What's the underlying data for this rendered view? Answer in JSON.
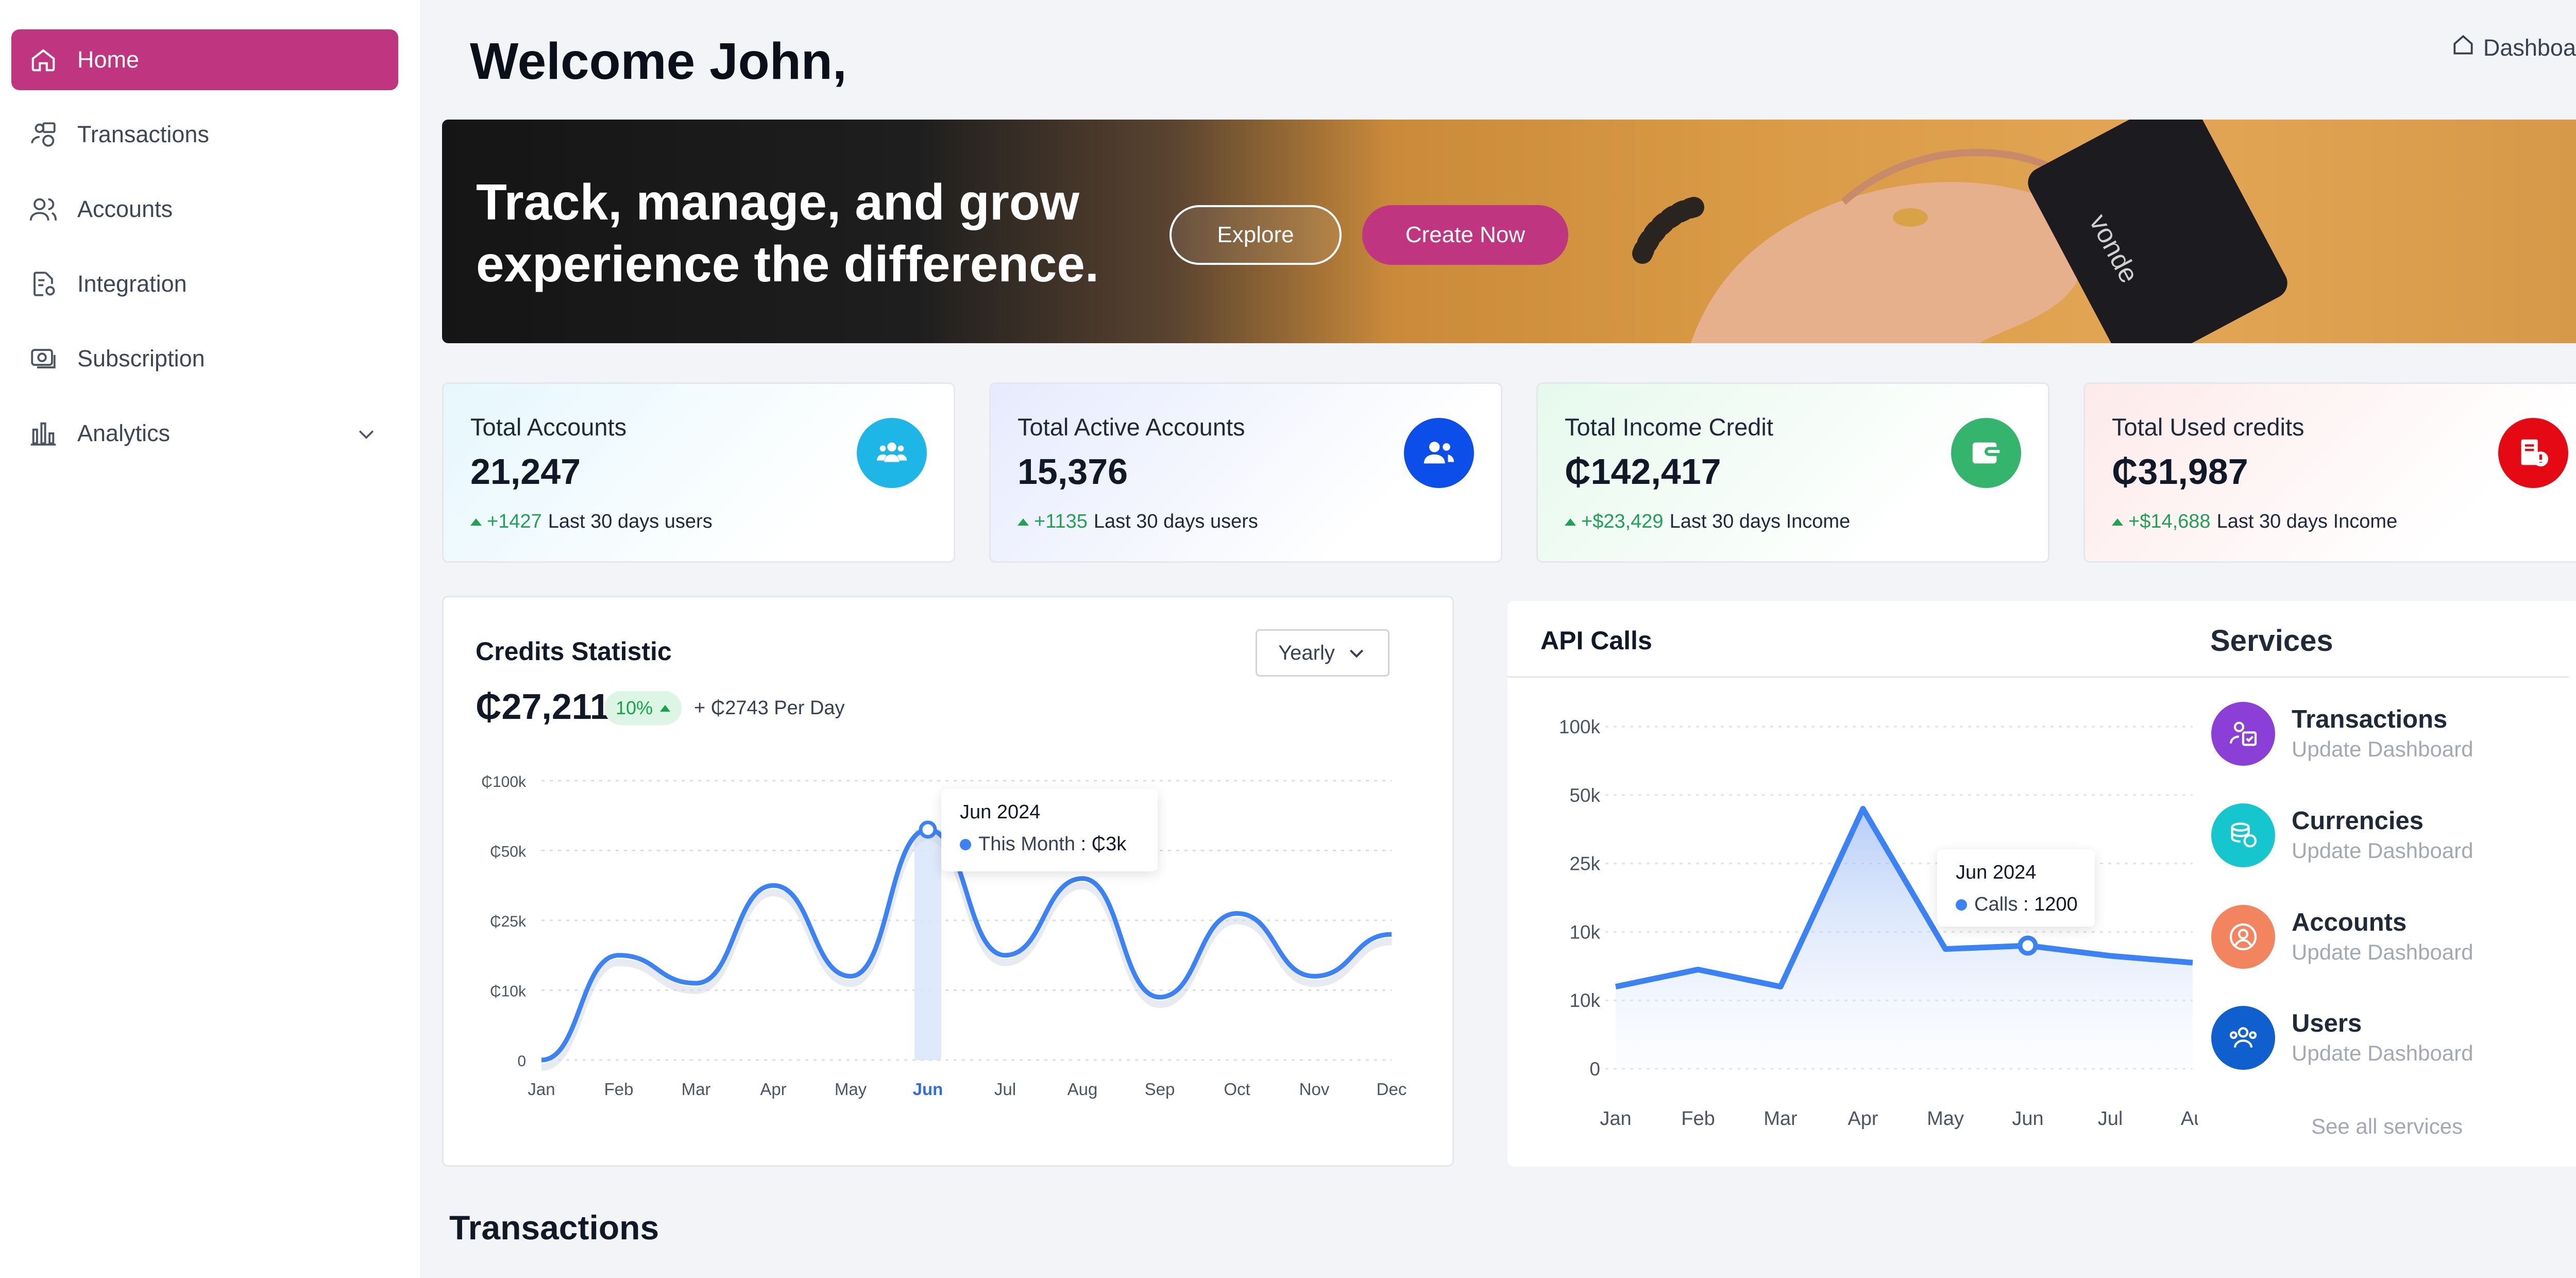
{
  "sidebar": {
    "items": [
      {
        "label": "Home",
        "icon": "home-icon",
        "active": true
      },
      {
        "label": "Transactions",
        "icon": "transactions-icon"
      },
      {
        "label": "Accounts",
        "icon": "users-icon"
      },
      {
        "label": "Integration",
        "icon": "document-settings-icon"
      },
      {
        "label": "Subscription",
        "icon": "subscription-icon"
      },
      {
        "label": "Analytics",
        "icon": "bar-chart-icon",
        "expandable": true
      }
    ]
  },
  "header": {
    "welcome": "Welcome John,",
    "breadcrumb": "Dashboard"
  },
  "hero": {
    "line1": "Track, manage, and grow",
    "line2": "experience the difference.",
    "explore": "Explore",
    "create": "Create Now",
    "card_brand": "vonde"
  },
  "stats": [
    {
      "title": "Total Accounts",
      "value": "21,247",
      "delta": "+1427",
      "note": "Last 30 days users",
      "color": "#1eb6e6"
    },
    {
      "title": "Total Active Accounts",
      "value": "15,376",
      "delta": "+1135",
      "note": "Last 30 days users",
      "color": "#0b4ee9"
    },
    {
      "title": "Total Income Credit",
      "value": "₵142,417",
      "delta": "+$23,429",
      "note": "Last 30 days Income",
      "color": "#34b46c"
    },
    {
      "title": "Total Used credits",
      "value": "₵31,987",
      "delta": "+$14,688",
      "note": "Last 30 days Income",
      "color": "#e50914"
    }
  ],
  "credits": {
    "title": "Credits Statistic",
    "period": "Yearly",
    "value": "₵27,211",
    "pill": "10%",
    "perday": "+ ₵2743 Per Day",
    "tooltip": {
      "title": "Jun 2024",
      "label": "This Month",
      "value": ": ₵3k"
    }
  },
  "api": {
    "title": "API Calls",
    "tooltip": {
      "title": "Jun 2024",
      "label": "Calls",
      "value": ": 1200"
    }
  },
  "services": {
    "title": "Services",
    "items": [
      {
        "name": "Transactions",
        "sub": "Update Dashboard",
        "color": "#8b3fd6"
      },
      {
        "name": "Currencies",
        "sub": "Update Dashboard",
        "color": "#16c6cf"
      },
      {
        "name": "Accounts",
        "sub": "Update Dashboard",
        "color": "#f2845f"
      },
      {
        "name": "Users",
        "sub": "Update Dashboard",
        "color": "#0f5fcf"
      }
    ],
    "see_all": "See all services"
  },
  "section": {
    "transactions": "Transactions"
  },
  "chart_data": [
    {
      "type": "line",
      "title": "Credits Statistic",
      "categories": [
        "Jan",
        "Feb",
        "Mar",
        "Apr",
        "May",
        "Jun",
        "Jul",
        "Aug",
        "Sep",
        "Oct",
        "Nov",
        "Dec"
      ],
      "highlight": "Jun",
      "y_ticks": [
        "0",
        "₵10k",
        "₵25k",
        "₵50k",
        "₵100k"
      ],
      "series": [
        {
          "values": [
            0,
            1.5,
            1.1,
            2.5,
            1.2,
            3.3,
            1.5,
            2.6,
            0.9,
            2.1,
            1.2,
            1.8
          ]
        }
      ]
    },
    {
      "type": "area",
      "title": "API Calls",
      "categories": [
        "Jan",
        "Feb",
        "Mar",
        "Apr",
        "May",
        "Jun",
        "Jul",
        "Au"
      ],
      "y_ticks": [
        "0",
        "10k",
        "10k",
        "25k",
        "50k",
        "100k"
      ],
      "series": [
        {
          "values": [
            1.2,
            1.45,
            1.2,
            3.8,
            1.75,
            1.8,
            1.65,
            1.55
          ]
        }
      ]
    }
  ]
}
